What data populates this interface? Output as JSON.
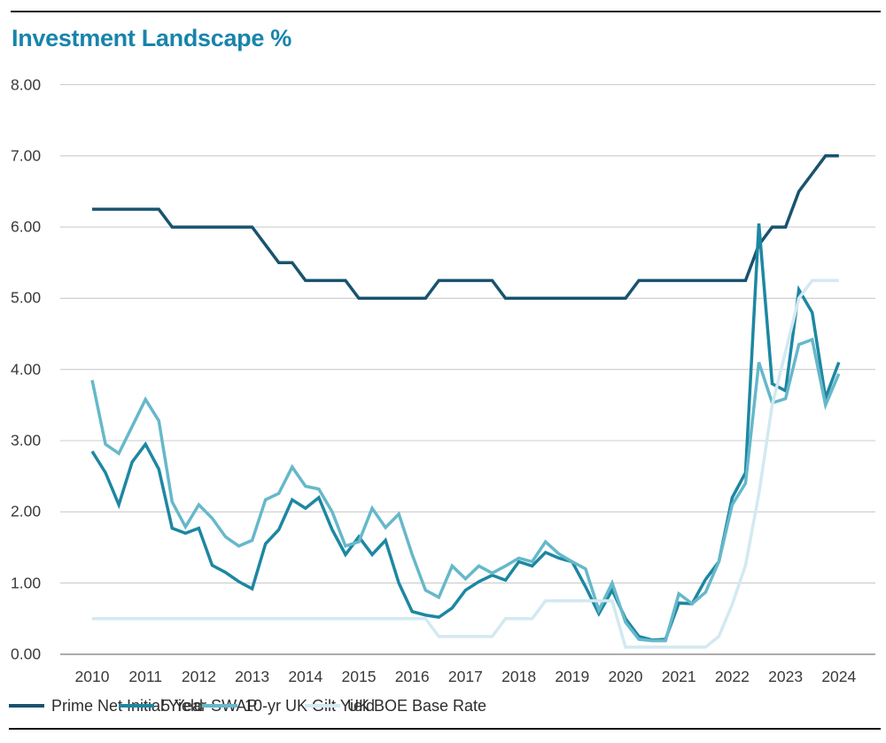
{
  "title": "Investment Landscape %",
  "colors": {
    "title": "#1884ab",
    "prime": "#19536f",
    "swap": "#1d87a2",
    "gilt": "#66b8ca",
    "boe": "#d3e9f1",
    "grid": "#cccccc",
    "zero_axis": "#999999",
    "tick_text": "#3a3a3a",
    "rule": "#141414"
  },
  "chart_data": {
    "type": "line",
    "title": "Investment Landscape %",
    "x_unit": "quarterly",
    "x_start": "2010Q1",
    "x_end": "2024Q1",
    "x_tick_labels": [
      "2010",
      "2011",
      "2012",
      "2013",
      "2014",
      "2015",
      "2016",
      "2017",
      "2018",
      "2019",
      "2020",
      "2021",
      "2022",
      "2023",
      "2024"
    ],
    "y_tick_labels": [
      "8.00",
      "7.00",
      "6.00",
      "5.00",
      "4.00",
      "3.00",
      "2.00",
      "1.00",
      "0.00"
    ],
    "ylim": [
      0,
      8
    ],
    "grid": "horizontal",
    "legend_position": "bottom",
    "series": [
      {
        "name": "Prime Net Initial Yield",
        "color": "#19536f",
        "values": [
          6.25,
          6.25,
          6.25,
          6.25,
          6.25,
          6.25,
          6.0,
          6.0,
          6.0,
          6.0,
          6.0,
          6.0,
          6.0,
          5.75,
          5.5,
          5.5,
          5.25,
          5.25,
          5.25,
          5.25,
          5.0,
          5.0,
          5.0,
          5.0,
          5.0,
          5.0,
          5.25,
          5.25,
          5.25,
          5.25,
          5.25,
          5.0,
          5.0,
          5.0,
          5.0,
          5.0,
          5.0,
          5.0,
          5.0,
          5.0,
          5.0,
          5.25,
          5.25,
          5.25,
          5.25,
          5.25,
          5.25,
          5.25,
          5.25,
          5.25,
          5.75,
          6.0,
          6.0,
          6.5,
          6.75,
          7.0,
          7.0
        ]
      },
      {
        "name": "5 Year SWAP",
        "color": "#1d87a2",
        "values": [
          2.85,
          2.55,
          2.1,
          2.7,
          2.95,
          2.6,
          1.77,
          1.7,
          1.77,
          1.25,
          1.15,
          1.02,
          0.92,
          1.55,
          1.75,
          2.17,
          2.05,
          2.2,
          1.75,
          1.4,
          1.65,
          1.4,
          1.6,
          1.0,
          0.6,
          0.55,
          0.52,
          0.65,
          0.9,
          1.02,
          1.11,
          1.04,
          1.3,
          1.24,
          1.43,
          1.35,
          1.3,
          0.95,
          0.57,
          0.9,
          0.5,
          0.25,
          0.2,
          0.21,
          0.72,
          0.71,
          1.05,
          1.3,
          2.2,
          2.55,
          6.05,
          3.8,
          3.7,
          5.12,
          4.8,
          3.6,
          4.1
        ]
      },
      {
        "name": "10-yr UK Gilt Yield",
        "color": "#66b8ca",
        "values": [
          3.85,
          2.95,
          2.82,
          3.2,
          3.58,
          3.28,
          2.14,
          1.79,
          2.1,
          1.91,
          1.65,
          1.52,
          1.6,
          2.17,
          2.26,
          2.63,
          2.36,
          2.32,
          2.0,
          1.52,
          1.58,
          2.05,
          1.78,
          1.97,
          1.4,
          0.9,
          0.8,
          1.24,
          1.06,
          1.24,
          1.14,
          1.24,
          1.35,
          1.3,
          1.58,
          1.41,
          1.3,
          1.2,
          0.62,
          1.0,
          0.45,
          0.21,
          0.19,
          0.19,
          0.85,
          0.71,
          0.87,
          1.3,
          2.1,
          2.4,
          4.1,
          3.53,
          3.59,
          4.35,
          4.42,
          3.5,
          3.94
        ]
      },
      {
        "name": "UK BOE Base Rate",
        "color": "#d3e9f1",
        "values": [
          0.5,
          0.5,
          0.5,
          0.5,
          0.5,
          0.5,
          0.5,
          0.5,
          0.5,
          0.5,
          0.5,
          0.5,
          0.5,
          0.5,
          0.5,
          0.5,
          0.5,
          0.5,
          0.5,
          0.5,
          0.5,
          0.5,
          0.5,
          0.5,
          0.5,
          0.5,
          0.25,
          0.25,
          0.25,
          0.25,
          0.25,
          0.5,
          0.5,
          0.5,
          0.75,
          0.75,
          0.75,
          0.75,
          0.75,
          0.75,
          0.1,
          0.1,
          0.1,
          0.1,
          0.1,
          0.1,
          0.1,
          0.25,
          0.7,
          1.25,
          2.25,
          3.5,
          4.25,
          5.0,
          5.25,
          5.25,
          5.25
        ]
      }
    ]
  }
}
